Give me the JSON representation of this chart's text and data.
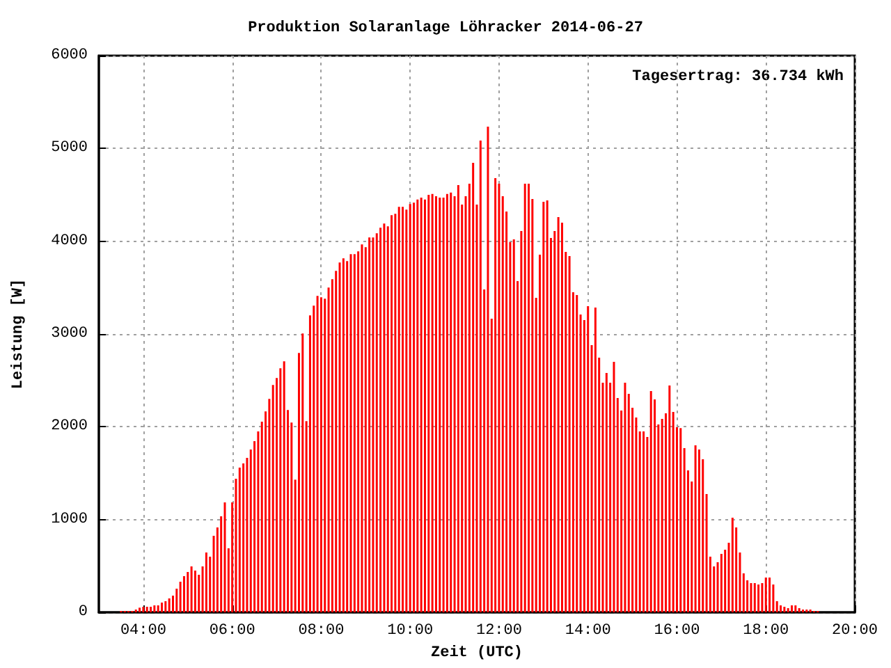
{
  "chart_data": {
    "type": "bar",
    "title": "Produktion Solaranlage Löhracker 2014-06-27",
    "xlabel": "Zeit (UTC)",
    "ylabel": "Leistung [W]",
    "annotations": [
      "Tagesertrag: 36.734 kWh"
    ],
    "x": [
      3.5,
      3.5833,
      3.6667,
      3.75,
      3.8333,
      3.9167,
      4,
      4.0833,
      4.1667,
      4.25,
      4.3333,
      4.4167,
      4.5,
      4.5833,
      4.6667,
      4.75,
      4.8333,
      4.9167,
      5,
      5.0833,
      5.1667,
      5.25,
      5.3333,
      5.4167,
      5.5,
      5.5833,
      5.6667,
      5.75,
      5.8333,
      5.9167,
      6,
      6.0833,
      6.1667,
      6.25,
      6.3333,
      6.4167,
      6.5,
      6.5833,
      6.6667,
      6.75,
      6.8333,
      6.9167,
      7,
      7.0833,
      7.1667,
      7.25,
      7.3333,
      7.4167,
      7.5,
      7.5833,
      7.6667,
      7.75,
      7.8333,
      7.9167,
      8,
      8.0833,
      8.1667,
      8.25,
      8.3333,
      8.4167,
      8.5,
      8.5833,
      8.6667,
      8.75,
      8.8333,
      8.9167,
      9,
      9.0833,
      9.1667,
      9.25,
      9.3333,
      9.4167,
      9.5,
      9.5833,
      9.6667,
      9.75,
      9.8333,
      9.9167,
      10,
      10.0833,
      10.1667,
      10.25,
      10.3333,
      10.4167,
      10.5,
      10.5833,
      10.6667,
      10.75,
      10.8333,
      10.9167,
      11,
      11.0833,
      11.1667,
      11.25,
      11.3333,
      11.4167,
      11.5,
      11.5833,
      11.6667,
      11.75,
      11.8333,
      11.9167,
      12,
      12.0833,
      12.1667,
      12.25,
      12.3333,
      12.4167,
      12.5,
      12.5833,
      12.6667,
      12.75,
      12.8333,
      12.9167,
      13,
      13.0833,
      13.1667,
      13.25,
      13.3333,
      13.4167,
      13.5,
      13.5833,
      13.6667,
      13.75,
      13.8333,
      13.9167,
      14,
      14.0833,
      14.1667,
      14.25,
      14.3333,
      14.4167,
      14.5,
      14.5833,
      14.6667,
      14.75,
      14.8333,
      14.9167,
      15,
      15.0833,
      15.1667,
      15.25,
      15.3333,
      15.4167,
      15.5,
      15.5833,
      15.6667,
      15.75,
      15.8333,
      15.9167,
      16,
      16.0833,
      16.1667,
      16.25,
      16.3333,
      16.4167,
      16.5,
      16.5833,
      16.6667,
      16.75,
      16.8333,
      16.9167,
      17,
      17.0833,
      17.1667,
      17.25,
      17.3333,
      17.4167,
      17.5,
      17.5833,
      17.6667,
      17.75,
      17.8333,
      17.9167,
      18,
      18.0833,
      18.1667,
      18.25,
      18.3333,
      18.4167,
      18.5,
      18.5833,
      18.6667,
      18.75,
      18.8333,
      18.9167,
      19,
      19.0833,
      19.1667
    ],
    "values": [
      15,
      15,
      15,
      15,
      30,
      50,
      60,
      60,
      60,
      75,
      75,
      105,
      120,
      150,
      180,
      255,
      330,
      390,
      435,
      495,
      450,
      405,
      495,
      645,
      600,
      825,
      915,
      1035,
      1185,
      690,
      1185,
      1440,
      1560,
      1605,
      1665,
      1755,
      1845,
      1950,
      2055,
      2165,
      2300,
      2450,
      2525,
      2630,
      2705,
      2180,
      2045,
      1430,
      2795,
      3005,
      2060,
      3200,
      3305,
      3410,
      3395,
      3380,
      3500,
      3590,
      3680,
      3770,
      3815,
      3785,
      3860,
      3860,
      3890,
      3965,
      3935,
      4040,
      4040,
      4085,
      4145,
      4190,
      4160,
      4280,
      4295,
      4370,
      4370,
      4340,
      4400,
      4415,
      4450,
      4470,
      4450,
      4500,
      4510,
      4485,
      4470,
      4470,
      4510,
      4525,
      4485,
      4605,
      4395,
      4485,
      4620,
      4845,
      4395,
      5085,
      3480,
      5235,
      3165,
      4680,
      4620,
      4485,
      4320,
      3990,
      4020,
      3570,
      4110,
      4620,
      4620,
      4455,
      3390,
      3855,
      4425,
      4440,
      4035,
      4110,
      4260,
      4200,
      3885,
      3840,
      3450,
      3420,
      3210,
      3150,
      3300,
      2880,
      3285,
      2745,
      2475,
      2580,
      2475,
      2700,
      2310,
      2175,
      2475,
      2355,
      2205,
      2100,
      1950,
      1950,
      1890,
      2385,
      2295,
      2025,
      2085,
      2145,
      2445,
      2160,
      1995,
      1985,
      1770,
      1530,
      1410,
      1800,
      1755,
      1650,
      1275,
      600,
      495,
      540,
      630,
      675,
      750,
      1020,
      915,
      645,
      420,
      345,
      315,
      315,
      300,
      315,
      375,
      375,
      300,
      120,
      75,
      60,
      45,
      75,
      75,
      45,
      30,
      30,
      30,
      15,
      15
    ],
    "color": "#ff0000",
    "xlim": [
      3,
      20
    ],
    "xticks": [
      {
        "value": 4,
        "label": "04:00"
      },
      {
        "value": 6,
        "label": "06:00"
      },
      {
        "value": 8,
        "label": "08:00"
      },
      {
        "value": 10,
        "label": "10:00"
      },
      {
        "value": 12,
        "label": "12:00"
      },
      {
        "value": 14,
        "label": "14:00"
      },
      {
        "value": 16,
        "label": "16:00"
      },
      {
        "value": 18,
        "label": "18:00"
      },
      {
        "value": 20,
        "label": "20:00"
      }
    ],
    "ylim": [
      0,
      6000
    ],
    "yticks": [
      0,
      1000,
      2000,
      3000,
      4000,
      5000,
      6000
    ],
    "grid": true
  }
}
